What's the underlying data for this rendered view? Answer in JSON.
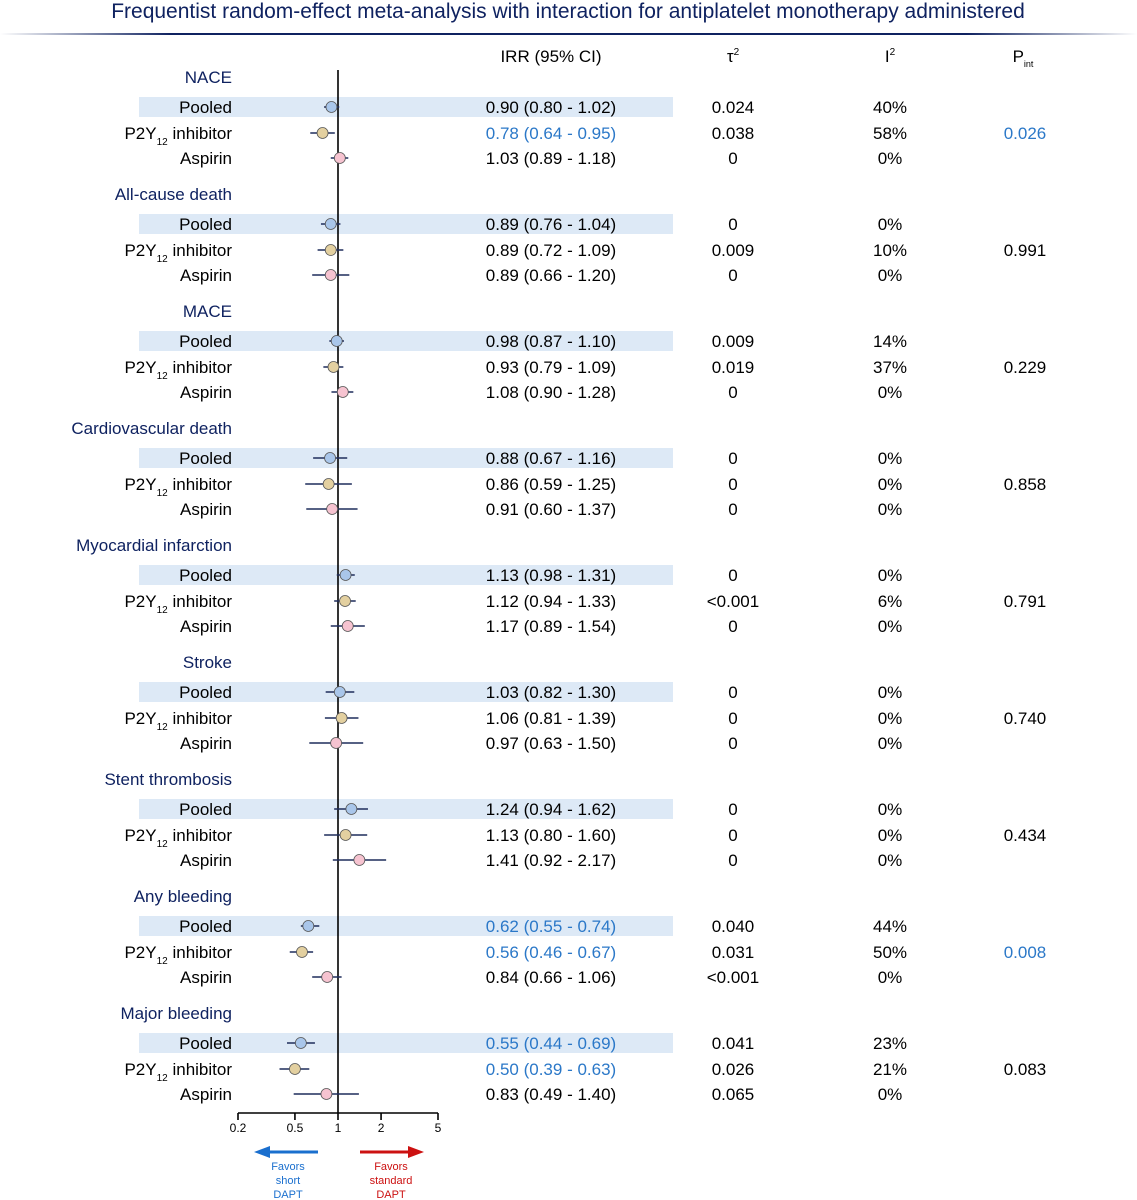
{
  "title": "Frequentist random-effect meta-analysis with interaction for antiplatelet monotherapy administered",
  "headers": {
    "irr": "IRR (95% CI)",
    "tau": "τ",
    "tau_sup": "2",
    "i2": "I",
    "i2_sup": "2",
    "pint": "P",
    "pint_sub": "int"
  },
  "row_labels": {
    "pooled": "Pooled",
    "p2y_main": "P2Y",
    "p2y_sub": "12",
    "p2y_rest": " inhibitor",
    "aspirin": "Aspirin"
  },
  "colors": {
    "pooled": "#a9c6ea",
    "p2y12": "#e3d0a0",
    "aspirin": "#f6c3d0",
    "ci_line": "#1f2d5c",
    "highlight_band": "#dde9f6",
    "significant_text": "#2b78c8",
    "title": "#0f2260",
    "favors_short": "#1a6fce",
    "favors_standard": "#cc1111"
  },
  "chart_data": {
    "type": "forest",
    "x_scale": "log",
    "xlim": [
      0.2,
      5
    ],
    "reference_line": 1,
    "x_ticks": [
      "0.2",
      "0.5",
      "1",
      "2",
      "5"
    ],
    "favors_left": [
      "Favors",
      "short",
      "DAPT"
    ],
    "favors_right": [
      "Favors",
      "standard",
      "DAPT"
    ],
    "outcomes": [
      {
        "name": "NACE",
        "p_int": "0.026",
        "p_int_significant": true,
        "rows": [
          {
            "group": "pooled",
            "irr": 0.9,
            "lo": 0.8,
            "hi": 1.02,
            "text": "0.90 (0.80 - 1.02)",
            "tau2": "0.024",
            "i2": "40%",
            "significant": false
          },
          {
            "group": "p2y12",
            "irr": 0.78,
            "lo": 0.64,
            "hi": 0.95,
            "text": "0.78 (0.64 - 0.95)",
            "tau2": "0.038",
            "i2": "58%",
            "significant": true
          },
          {
            "group": "aspirin",
            "irr": 1.03,
            "lo": 0.89,
            "hi": 1.18,
            "text": "1.03 (0.89 - 1.18)",
            "tau2": "0",
            "i2": "0%",
            "significant": false
          }
        ]
      },
      {
        "name": "All-cause death",
        "p_int": "0.991",
        "p_int_significant": false,
        "rows": [
          {
            "group": "pooled",
            "irr": 0.89,
            "lo": 0.76,
            "hi": 1.04,
            "text": "0.89 (0.76 - 1.04)",
            "tau2": "0",
            "i2": "0%",
            "significant": false
          },
          {
            "group": "p2y12",
            "irr": 0.89,
            "lo": 0.72,
            "hi": 1.09,
            "text": "0.89 (0.72 - 1.09)",
            "tau2": "0.009",
            "i2": "10%",
            "significant": false
          },
          {
            "group": "aspirin",
            "irr": 0.89,
            "lo": 0.66,
            "hi": 1.2,
            "text": "0.89 (0.66 - 1.20)",
            "tau2": "0",
            "i2": "0%",
            "significant": false
          }
        ]
      },
      {
        "name": "MACE",
        "p_int": "0.229",
        "p_int_significant": false,
        "rows": [
          {
            "group": "pooled",
            "irr": 0.98,
            "lo": 0.87,
            "hi": 1.1,
            "text": "0.98 (0.87 - 1.10)",
            "tau2": "0.009",
            "i2": "14%",
            "significant": false
          },
          {
            "group": "p2y12",
            "irr": 0.93,
            "lo": 0.79,
            "hi": 1.09,
            "text": "0.93 (0.79 - 1.09)",
            "tau2": "0.019",
            "i2": "37%",
            "significant": false
          },
          {
            "group": "aspirin",
            "irr": 1.08,
            "lo": 0.9,
            "hi": 1.28,
            "text": "1.08 (0.90 - 1.28)",
            "tau2": "0",
            "i2": "0%",
            "significant": false
          }
        ]
      },
      {
        "name": "Cardiovascular death",
        "p_int": "0.858",
        "p_int_significant": false,
        "rows": [
          {
            "group": "pooled",
            "irr": 0.88,
            "lo": 0.67,
            "hi": 1.16,
            "text": "0.88 (0.67 - 1.16)",
            "tau2": "0",
            "i2": "0%",
            "significant": false
          },
          {
            "group": "p2y12",
            "irr": 0.86,
            "lo": 0.59,
            "hi": 1.25,
            "text": "0.86 (0.59 - 1.25)",
            "tau2": "0",
            "i2": "0%",
            "significant": false
          },
          {
            "group": "aspirin",
            "irr": 0.91,
            "lo": 0.6,
            "hi": 1.37,
            "text": "0.91 (0.60 - 1.37)",
            "tau2": "0",
            "i2": "0%",
            "significant": false
          }
        ]
      },
      {
        "name": "Myocardial infarction",
        "p_int": "0.791",
        "p_int_significant": false,
        "rows": [
          {
            "group": "pooled",
            "irr": 1.13,
            "lo": 0.98,
            "hi": 1.31,
            "text": "1.13 (0.98 - 1.31)",
            "tau2": "0",
            "i2": "0%",
            "significant": false
          },
          {
            "group": "p2y12",
            "irr": 1.12,
            "lo": 0.94,
            "hi": 1.33,
            "text": "1.12 (0.94 - 1.33)",
            "tau2": "<0.001",
            "i2": "6%",
            "significant": false
          },
          {
            "group": "aspirin",
            "irr": 1.17,
            "lo": 0.89,
            "hi": 1.54,
            "text": "1.17 (0.89 - 1.54)",
            "tau2": "0",
            "i2": "0%",
            "significant": false
          }
        ]
      },
      {
        "name": "Stroke",
        "p_int": "0.740",
        "p_int_significant": false,
        "rows": [
          {
            "group": "pooled",
            "irr": 1.03,
            "lo": 0.82,
            "hi": 1.3,
            "text": "1.03 (0.82 - 1.30)",
            "tau2": "0",
            "i2": "0%",
            "significant": false
          },
          {
            "group": "p2y12",
            "irr": 1.06,
            "lo": 0.81,
            "hi": 1.39,
            "text": "1.06 (0.81 - 1.39)",
            "tau2": "0",
            "i2": "0%",
            "significant": false
          },
          {
            "group": "aspirin",
            "irr": 0.97,
            "lo": 0.63,
            "hi": 1.5,
            "text": "0.97 (0.63 - 1.50)",
            "tau2": "0",
            "i2": "0%",
            "significant": false
          }
        ]
      },
      {
        "name": "Stent thrombosis",
        "p_int": "0.434",
        "p_int_significant": false,
        "rows": [
          {
            "group": "pooled",
            "irr": 1.24,
            "lo": 0.94,
            "hi": 1.62,
            "text": "1.24 (0.94 - 1.62)",
            "tau2": "0",
            "i2": "0%",
            "significant": false
          },
          {
            "group": "p2y12",
            "irr": 1.13,
            "lo": 0.8,
            "hi": 1.6,
            "text": "1.13 (0.80 - 1.60)",
            "tau2": "0",
            "i2": "0%",
            "significant": false
          },
          {
            "group": "aspirin",
            "irr": 1.41,
            "lo": 0.92,
            "hi": 2.17,
            "text": "1.41 (0.92 - 2.17)",
            "tau2": "0",
            "i2": "0%",
            "significant": false
          }
        ]
      },
      {
        "name": "Any bleeding",
        "p_int": "0.008",
        "p_int_significant": true,
        "rows": [
          {
            "group": "pooled",
            "irr": 0.62,
            "lo": 0.55,
            "hi": 0.74,
            "text": "0.62 (0.55 - 0.74)",
            "tau2": "0.040",
            "i2": "44%",
            "significant": true
          },
          {
            "group": "p2y12",
            "irr": 0.56,
            "lo": 0.46,
            "hi": 0.67,
            "text": "0.56 (0.46 - 0.67)",
            "tau2": "0.031",
            "i2": "50%",
            "significant": true
          },
          {
            "group": "aspirin",
            "irr": 0.84,
            "lo": 0.66,
            "hi": 1.06,
            "text": "0.84 (0.66 - 1.06)",
            "tau2": "<0.001",
            "i2": "0%",
            "significant": false
          }
        ]
      },
      {
        "name": "Major bleeding",
        "p_int": "0.083",
        "p_int_significant": false,
        "rows": [
          {
            "group": "pooled",
            "irr": 0.55,
            "lo": 0.44,
            "hi": 0.69,
            "text": "0.55 (0.44 - 0.69)",
            "tau2": "0.041",
            "i2": "23%",
            "significant": true
          },
          {
            "group": "p2y12",
            "irr": 0.5,
            "lo": 0.39,
            "hi": 0.63,
            "text": "0.50 (0.39 - 0.63)",
            "tau2": "0.026",
            "i2": "21%",
            "significant": true
          },
          {
            "group": "aspirin",
            "irr": 0.83,
            "lo": 0.49,
            "hi": 1.4,
            "text": "0.83 (0.49 - 1.40)",
            "tau2": "0.065",
            "i2": "0%",
            "significant": false
          }
        ]
      }
    ]
  }
}
